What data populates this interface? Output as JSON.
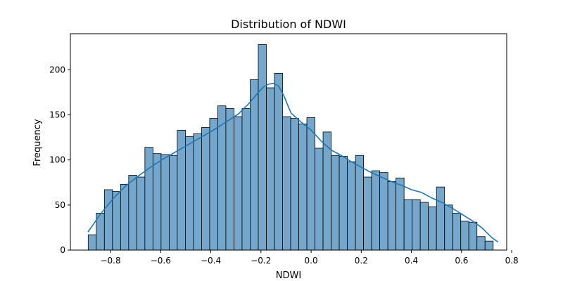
{
  "chart_data": {
    "type": "bar",
    "title": "Distribution of NDWI",
    "xlabel": "NDWI",
    "ylabel": "Frequency",
    "xlim": [
      -0.96,
      0.78
    ],
    "ylim": [
      0,
      240
    ],
    "xticks": [
      -0.8,
      -0.6,
      -0.4,
      -0.2,
      0.0,
      0.2,
      0.4,
      0.6,
      0.8
    ],
    "xtick_labels": [
      "−0.8",
      "−0.6",
      "−0.4",
      "−0.2",
      "0.0",
      "0.2",
      "0.4",
      "0.6",
      "0.8"
    ],
    "yticks": [
      0,
      50,
      100,
      150,
      200
    ],
    "ytick_labels": [
      "0",
      "50",
      "100",
      "150",
      "200"
    ],
    "bin_start": -0.889,
    "bin_width": 0.0323,
    "values": [
      17,
      41,
      67,
      65,
      73,
      83,
      81,
      114,
      107,
      106,
      105,
      133,
      126,
      129,
      136,
      146,
      160,
      157,
      148,
      157,
      189,
      228,
      180,
      196,
      148,
      146,
      140,
      147,
      113,
      131,
      105,
      104,
      98,
      105,
      81,
      88,
      86,
      76,
      80,
      56,
      56,
      53,
      48,
      70,
      50,
      41,
      32,
      31,
      15,
      10
    ],
    "kde": {
      "x": [
        -0.89,
        -0.84,
        -0.79,
        -0.74,
        -0.69,
        -0.64,
        -0.59,
        -0.54,
        -0.49,
        -0.44,
        -0.39,
        -0.34,
        -0.29,
        -0.25,
        -0.21,
        -0.19,
        -0.17,
        -0.15,
        -0.13,
        -0.11,
        -0.08,
        -0.04,
        0.0,
        0.04,
        0.08,
        0.12,
        0.16,
        0.2,
        0.24,
        0.28,
        0.32,
        0.36,
        0.4,
        0.44,
        0.48,
        0.52,
        0.56,
        0.6,
        0.64,
        0.68,
        0.72,
        0.745
      ],
      "y": [
        20,
        40,
        57,
        71,
        82,
        92,
        101,
        109,
        117,
        125,
        133,
        142,
        151,
        162,
        175,
        181,
        184,
        185,
        182,
        172,
        152,
        142,
        133,
        121,
        111,
        105,
        98,
        92,
        86,
        81,
        76,
        72,
        67,
        64,
        58,
        53,
        47,
        40,
        33,
        25,
        14,
        9
      ]
    },
    "bar_color": "#75a6cc",
    "bar_edge_color": "#000000",
    "kde_color": "#1f77b4",
    "grid": false,
    "legend": false
  }
}
